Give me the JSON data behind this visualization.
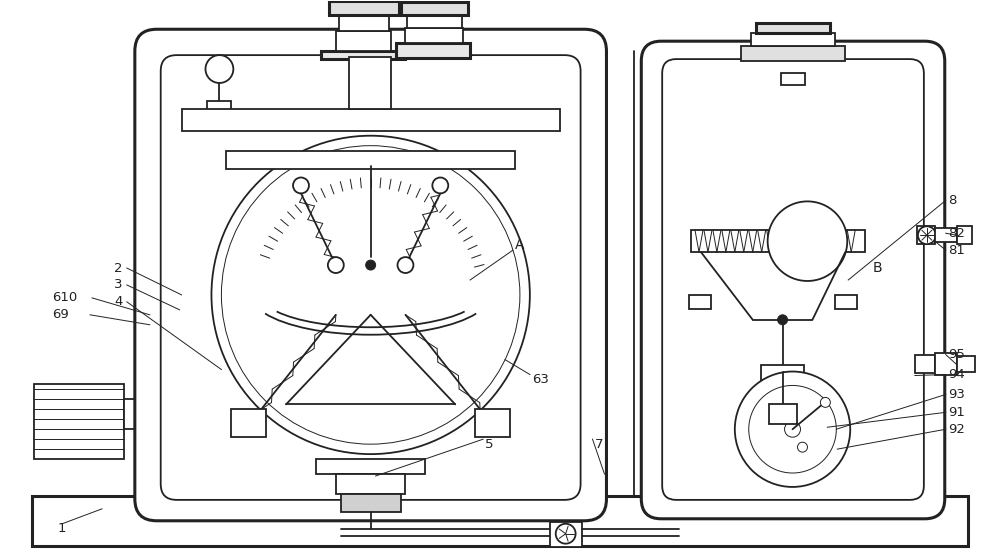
{
  "bg_color": "#ffffff",
  "line_color": "#222222",
  "lw_main": 1.3,
  "lw_thick": 2.2,
  "lw_thin": 0.7,
  "figsize": [
    10.0,
    5.55
  ],
  "dpi": 100
}
